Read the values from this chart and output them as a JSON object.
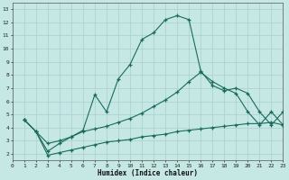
{
  "xlabel": "Humidex (Indice chaleur)",
  "bg_color": "#c5e8e5",
  "line_color": "#1a6b5a",
  "grid_color": "#aacfcf",
  "xlim": [
    0,
    23
  ],
  "ylim": [
    1.5,
    13.5
  ],
  "xticks": [
    0,
    1,
    2,
    3,
    4,
    5,
    6,
    7,
    8,
    9,
    10,
    11,
    12,
    13,
    14,
    15,
    16,
    17,
    18,
    19,
    20,
    21,
    22,
    23
  ],
  "yticks": [
    2,
    3,
    4,
    5,
    6,
    7,
    8,
    9,
    10,
    11,
    12,
    13
  ],
  "line1_x": [
    1,
    2,
    3,
    4,
    5,
    6,
    7,
    8,
    9,
    10,
    11,
    12,
    13,
    14,
    15,
    16,
    17,
    18,
    19,
    20,
    21,
    22,
    23
  ],
  "line1_y": [
    4.6,
    3.7,
    2.2,
    2.8,
    3.3,
    3.8,
    6.5,
    5.2,
    7.7,
    8.8,
    10.7,
    11.2,
    12.2,
    12.5,
    12.2,
    8.3,
    7.2,
    6.8,
    7.0,
    6.6,
    5.2,
    4.2,
    5.2
  ],
  "line2_x": [
    1,
    2,
    3,
    4,
    5,
    6,
    7,
    8,
    9,
    10,
    11,
    12,
    13,
    14,
    15,
    16,
    17,
    18,
    19,
    20,
    21,
    22,
    23
  ],
  "line2_y": [
    4.6,
    3.7,
    2.8,
    3.0,
    3.3,
    3.7,
    3.9,
    4.1,
    4.4,
    4.7,
    5.1,
    5.6,
    6.1,
    6.7,
    7.5,
    8.2,
    7.5,
    7.0,
    6.6,
    5.2,
    4.2,
    5.2,
    4.2
  ],
  "line3_x": [
    1,
    2,
    3,
    4,
    5,
    6,
    7,
    8,
    9,
    10,
    11,
    12,
    13,
    14,
    15,
    16,
    17,
    18,
    19,
    20,
    21,
    22,
    23
  ],
  "line3_y": [
    4.6,
    3.7,
    1.9,
    2.1,
    2.3,
    2.5,
    2.7,
    2.9,
    3.0,
    3.1,
    3.3,
    3.4,
    3.5,
    3.7,
    3.8,
    3.9,
    4.0,
    4.1,
    4.2,
    4.3,
    4.3,
    4.4,
    4.2
  ]
}
